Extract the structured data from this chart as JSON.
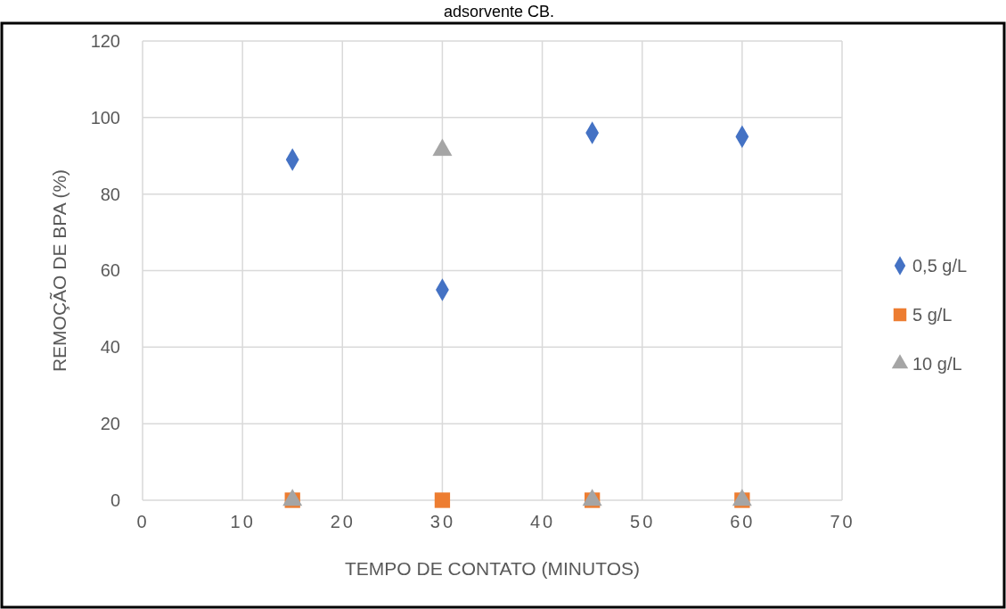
{
  "chart_data": {
    "type": "scatter",
    "title": "adsorvente CB.",
    "xlabel": "TEMPO DE CONTATO (MINUTOS)",
    "ylabel": "REMOÇÃO DE BPA (%)",
    "x": [
      15,
      30,
      45,
      60
    ],
    "series": [
      {
        "name": "0,5 g/L",
        "color": "#4472c4",
        "marker": "diamond",
        "values": [
          89,
          55,
          96,
          95
        ]
      },
      {
        "name": "5 g/L",
        "color": "#ed7d31",
        "marker": "square",
        "values": [
          0,
          0,
          0,
          0
        ]
      },
      {
        "name": "10 g/L",
        "color": "#a5a5a5",
        "marker": "triangle",
        "values": [
          0,
          91.5,
          0,
          0
        ]
      }
    ],
    "xlim": [
      0,
      70
    ],
    "xticks": [
      0,
      10,
      20,
      30,
      40,
      50,
      60,
      70
    ],
    "ylim": [
      0,
      120
    ],
    "yticks": [
      0,
      20,
      40,
      60,
      80,
      100,
      120
    ],
    "grid": true,
    "legend": "right"
  }
}
